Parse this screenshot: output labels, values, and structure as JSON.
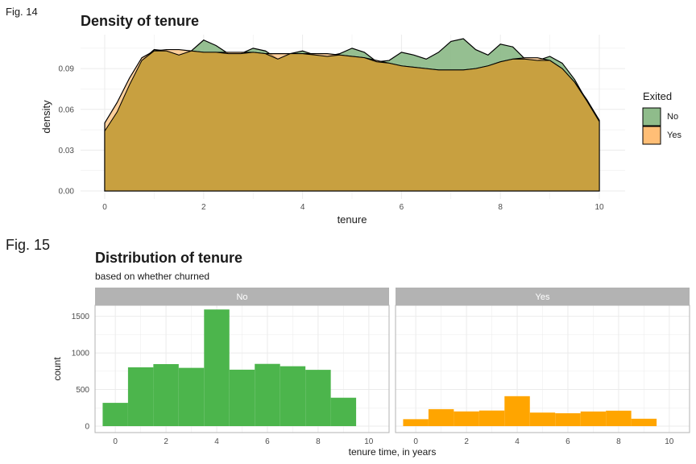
{
  "figures": {
    "fig14_label": "Fig.  14",
    "fig15_label": "Fig.  15"
  },
  "colors": {
    "density_no": "#8fbc8b",
    "density_yes": "#ffbe76",
    "overlap": "#c8a040",
    "bar_no": "#4cb54c",
    "bar_yes": "#ffa500",
    "strip": "#b3b3b3",
    "grid": "#ebebeb",
    "panel_border": "#b3b3b3"
  },
  "chart_data": [
    {
      "type": "area",
      "title": "Density of tenure",
      "xlabel": "tenure",
      "ylabel": "density",
      "xlim": [
        0,
        10
      ],
      "ylim": [
        0,
        0.115
      ],
      "x_ticks": [
        0,
        2,
        4,
        6,
        8,
        10
      ],
      "y_ticks": [
        0.0,
        0.03,
        0.06,
        0.09
      ],
      "y_tick_labels": [
        "0.00",
        "0.03",
        "0.06",
        "0.09"
      ],
      "grid": true,
      "legend": {
        "title": "Exited",
        "position": "right",
        "entries": [
          "No",
          "Yes"
        ]
      },
      "series": [
        {
          "name": "No",
          "x": [
            0,
            0.25,
            0.5,
            0.75,
            1.0,
            1.25,
            1.5,
            1.75,
            2.0,
            2.25,
            2.5,
            2.75,
            3.0,
            3.25,
            3.5,
            3.75,
            4.0,
            4.25,
            4.5,
            4.75,
            5.0,
            5.25,
            5.5,
            5.75,
            6.0,
            6.25,
            6.5,
            6.75,
            7.0,
            7.25,
            7.5,
            7.75,
            8.0,
            8.25,
            8.5,
            8.75,
            9.0,
            9.25,
            9.5,
            9.75,
            10.0
          ],
          "y": [
            0.044,
            0.058,
            0.078,
            0.096,
            0.104,
            0.103,
            0.1,
            0.103,
            0.111,
            0.107,
            0.101,
            0.101,
            0.105,
            0.103,
            0.097,
            0.101,
            0.103,
            0.1,
            0.099,
            0.101,
            0.105,
            0.102,
            0.095,
            0.096,
            0.102,
            0.1,
            0.097,
            0.102,
            0.11,
            0.112,
            0.104,
            0.1,
            0.108,
            0.106,
            0.097,
            0.096,
            0.099,
            0.094,
            0.082,
            0.066,
            0.051
          ]
        },
        {
          "name": "Yes",
          "x": [
            0,
            0.25,
            0.5,
            0.75,
            1.0,
            1.25,
            1.5,
            1.75,
            2.0,
            2.25,
            2.5,
            2.75,
            3.0,
            3.25,
            3.5,
            3.75,
            4.0,
            4.25,
            4.5,
            4.75,
            5.0,
            5.25,
            5.5,
            5.75,
            6.0,
            6.25,
            6.5,
            6.75,
            7.0,
            7.25,
            7.5,
            7.75,
            8.0,
            8.25,
            8.5,
            8.75,
            9.0,
            9.25,
            9.5,
            9.75,
            10.0
          ],
          "y": [
            0.05,
            0.065,
            0.083,
            0.098,
            0.103,
            0.104,
            0.104,
            0.103,
            0.102,
            0.102,
            0.102,
            0.102,
            0.102,
            0.101,
            0.101,
            0.101,
            0.101,
            0.101,
            0.101,
            0.1,
            0.099,
            0.098,
            0.096,
            0.094,
            0.092,
            0.091,
            0.09,
            0.089,
            0.089,
            0.089,
            0.09,
            0.092,
            0.095,
            0.097,
            0.098,
            0.098,
            0.096,
            0.09,
            0.08,
            0.067,
            0.052
          ]
        }
      ]
    },
    {
      "type": "bar",
      "title": "Distribution of tenure",
      "subtitle": "based on whether churned",
      "xlabel": "tenure time, in years",
      "ylabel": "count",
      "xlim": [
        -0.8,
        10.8
      ],
      "ylim": [
        0,
        1650
      ],
      "x_ticks": [
        0,
        2,
        4,
        6,
        8,
        10
      ],
      "y_ticks": [
        0,
        500,
        1000,
        1500
      ],
      "grid": true,
      "bin_centers": [
        0,
        1,
        2,
        3,
        4,
        5,
        6,
        7,
        8,
        9,
        10
      ],
      "panels": [
        {
          "name": "No",
          "values": [
            318,
            803,
            847,
            796,
            1593,
            771,
            850,
            818,
            769,
            388,
            0
          ]
        },
        {
          "name": "Yes",
          "values": [
            95,
            232,
            201,
            213,
            409,
            185,
            176,
            200,
            211,
            101,
            0
          ]
        }
      ]
    }
  ]
}
